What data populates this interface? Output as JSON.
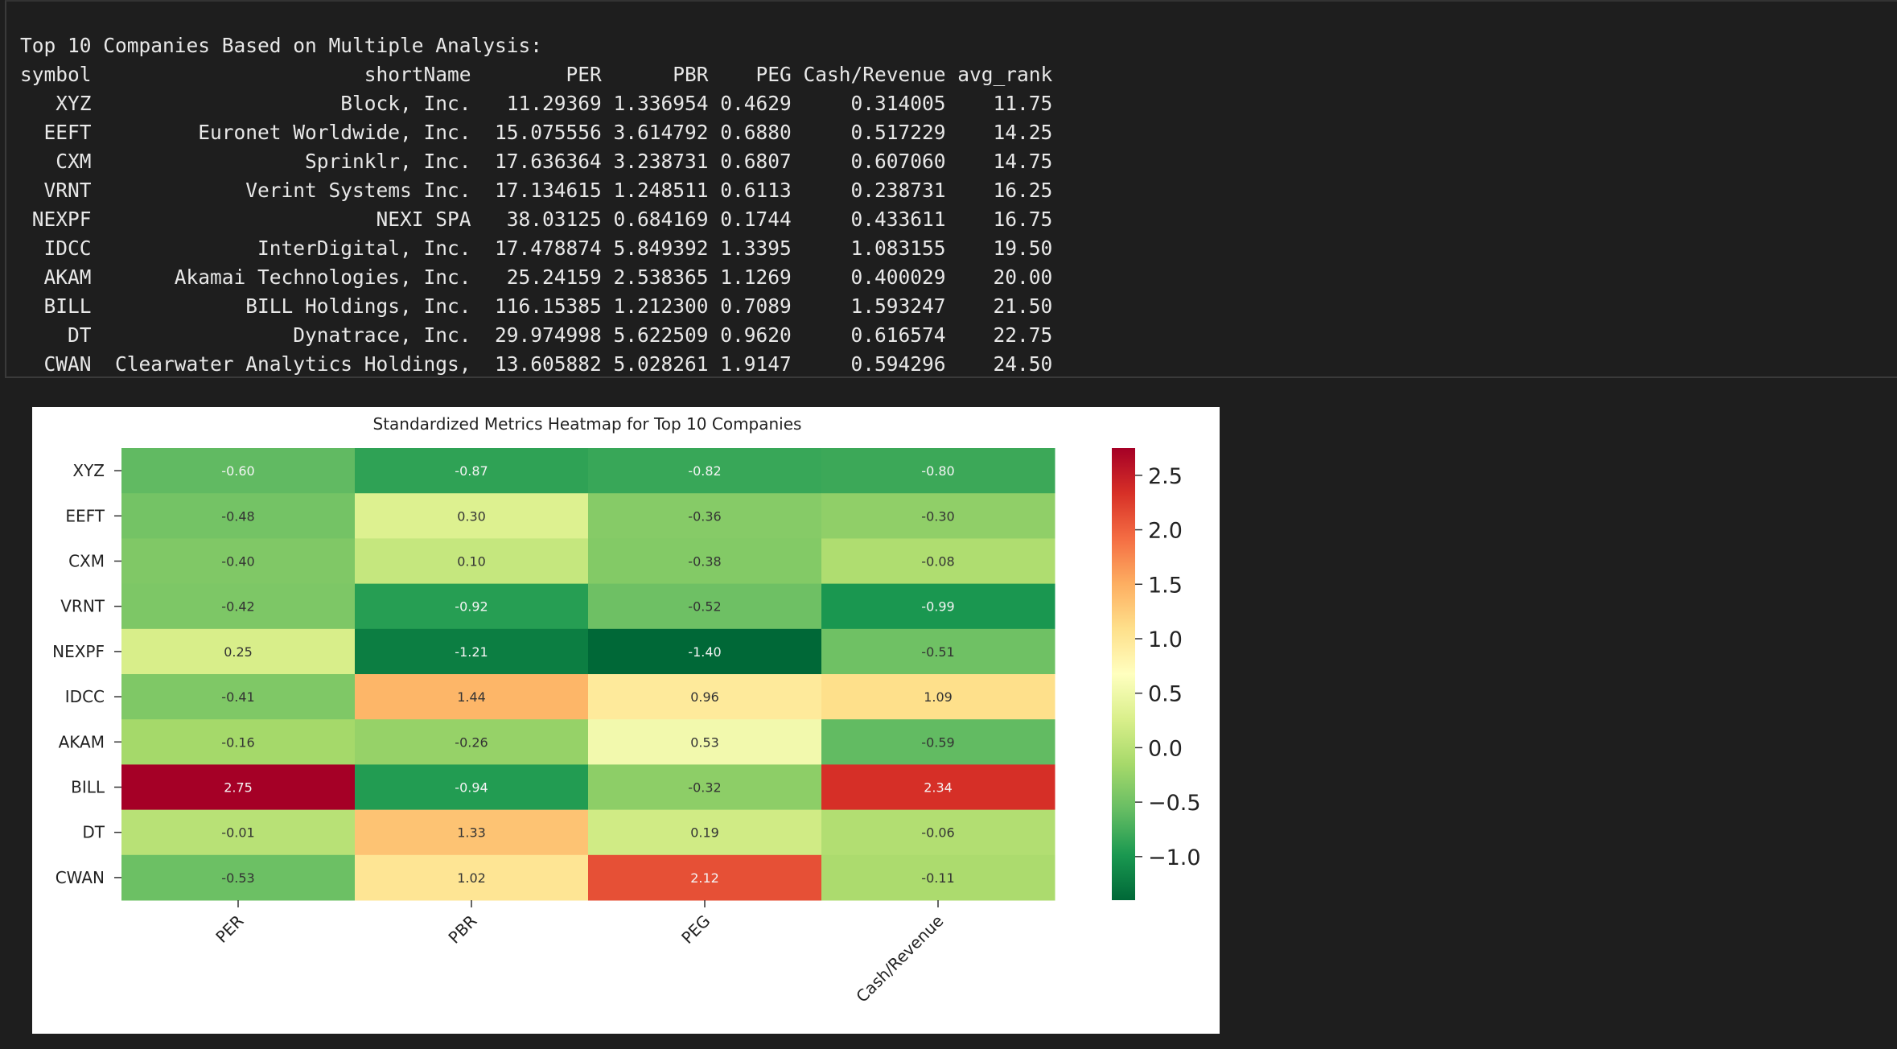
{
  "console": {
    "heading": "Top 10 Companies Based on Multiple Analysis:",
    "columns": [
      "symbol",
      "shortName",
      "PER",
      "PBR",
      "PEG",
      "Cash/Revenue",
      "avg_rank"
    ],
    "rows": [
      [
        "XYZ",
        "Block, Inc.",
        "11.29369",
        "1.336954",
        "0.4629",
        "0.314005",
        "11.75"
      ],
      [
        "EEFT",
        "Euronet Worldwide, Inc.",
        "15.075556",
        "3.614792",
        "0.6880",
        "0.517229",
        "14.25"
      ],
      [
        "CXM",
        "Sprinklr, Inc.",
        "17.636364",
        "3.238731",
        "0.6807",
        "0.607060",
        "14.75"
      ],
      [
        "VRNT",
        "Verint Systems Inc.",
        "17.134615",
        "1.248511",
        "0.6113",
        "0.238731",
        "16.25"
      ],
      [
        "NEXPF",
        "NEXI SPA",
        "38.03125",
        "0.684169",
        "0.1744",
        "0.433611",
        "16.75"
      ],
      [
        "IDCC",
        "InterDigital, Inc.",
        "17.478874",
        "5.849392",
        "1.3395",
        "1.083155",
        "19.50"
      ],
      [
        "AKAM",
        "Akamai Technologies, Inc.",
        "25.24159",
        "2.538365",
        "1.1269",
        "0.400029",
        "20.00"
      ],
      [
        "BILL",
        "BILL Holdings, Inc.",
        "116.15385",
        "1.212300",
        "0.7089",
        "1.593247",
        "21.50"
      ],
      [
        "DT",
        "Dynatrace, Inc.",
        "29.974998",
        "5.622509",
        "0.9620",
        "0.616574",
        "22.75"
      ],
      [
        "CWAN",
        "Clearwater Analytics Holdings,",
        "13.605882",
        "5.028261",
        "1.9147",
        "0.594296",
        "24.50"
      ]
    ]
  },
  "chart_data": {
    "type": "heatmap",
    "title": "Standardized Metrics Heatmap for Top 10 Companies",
    "rows": [
      "XYZ",
      "EEFT",
      "CXM",
      "VRNT",
      "NEXPF",
      "IDCC",
      "AKAM",
      "BILL",
      "DT",
      "CWAN"
    ],
    "columns": [
      "PER",
      "PBR",
      "PEG",
      "Cash/Revenue"
    ],
    "values": [
      [
        -0.6,
        -0.87,
        -0.82,
        -0.8
      ],
      [
        -0.48,
        0.3,
        -0.36,
        -0.3
      ],
      [
        -0.4,
        0.1,
        -0.38,
        -0.08
      ],
      [
        -0.42,
        -0.92,
        -0.52,
        -0.99
      ],
      [
        0.25,
        -1.21,
        -1.4,
        -0.51
      ],
      [
        -0.41,
        1.44,
        0.96,
        1.09
      ],
      [
        -0.16,
        -0.26,
        0.53,
        -0.59
      ],
      [
        2.75,
        -0.94,
        -0.32,
        2.34
      ],
      [
        -0.01,
        1.33,
        0.19,
        -0.06
      ],
      [
        -0.53,
        1.02,
        2.12,
        -0.11
      ]
    ],
    "colormap": "RdYlGn_r",
    "vmin": -1.4,
    "vmax": 2.75,
    "colorbar_ticks": [
      2.5,
      2.0,
      1.5,
      1.0,
      0.5,
      0.0,
      -0.5,
      -1.0
    ],
    "colorbar_labels": [
      "2.5",
      "2.0",
      "1.5",
      "1.0",
      "0.5",
      "0.0",
      "−0.5",
      "−1.0"
    ],
    "annotation_format": "0.00"
  }
}
